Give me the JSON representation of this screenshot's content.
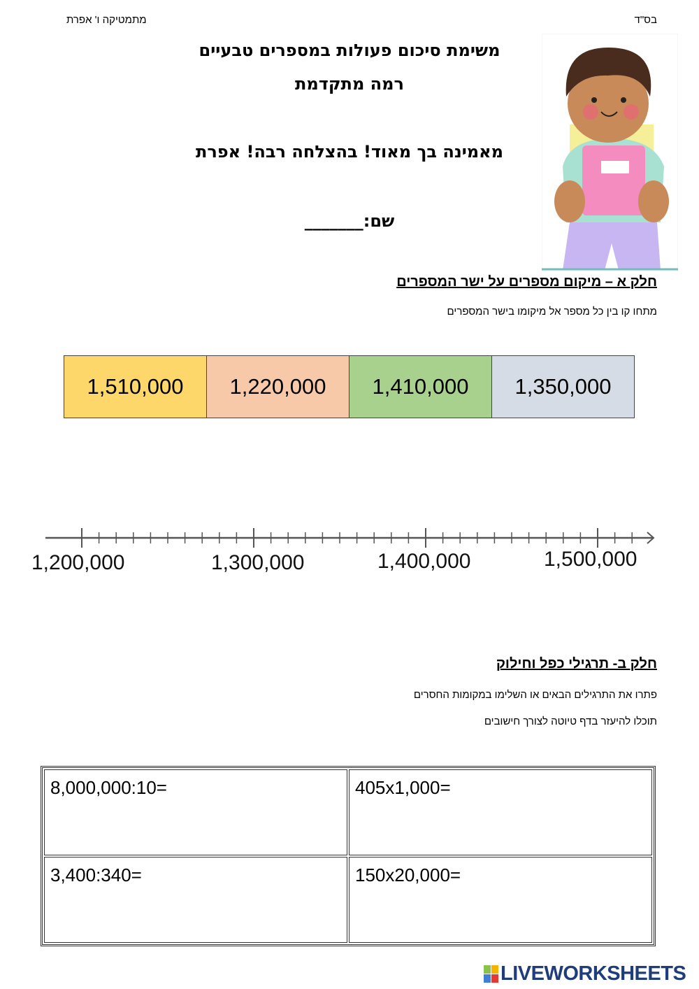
{
  "header": {
    "right": "בס\"ד",
    "left": "מתמטיקה ו' אפרת"
  },
  "title": {
    "line1": "משימת סיכום פעולות במספרים טבעיים",
    "line2": "רמה מתקדמת",
    "encouragement": "מאמינה בך מאוד! בהצלחה רבה! אפרת",
    "name_label": "שם:_______"
  },
  "part_a": {
    "heading": "חלק א – מיקום מספרים על ישר המספרים",
    "instruction": "מתחו קו בין כל מספר אל מיקומו בישר המספרים",
    "boxes": [
      {
        "value": "1,510,000",
        "color": "#fdd769"
      },
      {
        "value": "1,220,000",
        "color": "#f7c9a8"
      },
      {
        "value": "1,410,000",
        "color": "#a9d18e"
      },
      {
        "value": "1,350,000",
        "color": "#d6dce5"
      }
    ],
    "number_line": {
      "labels": [
        "1,200,000",
        "1,300,000",
        "1,400,000",
        "1,500,000"
      ],
      "minor_per_interval": 10
    }
  },
  "part_b": {
    "heading": "חלק ב- תרגילי כפל וחילוק",
    "instruction1": "פתרו את התרגילים הבאים  או השלימו במקומות החסרים",
    "instruction2": "תוכלו להיעזר בדף טיוטה לצורך חישובים",
    "exercises": [
      [
        "8,000,000:10=",
        "405x1,000="
      ],
      [
        "3,400:340=",
        "150x20,000="
      ]
    ]
  },
  "footer": {
    "logo": "LIVEWORKSHEETS"
  }
}
